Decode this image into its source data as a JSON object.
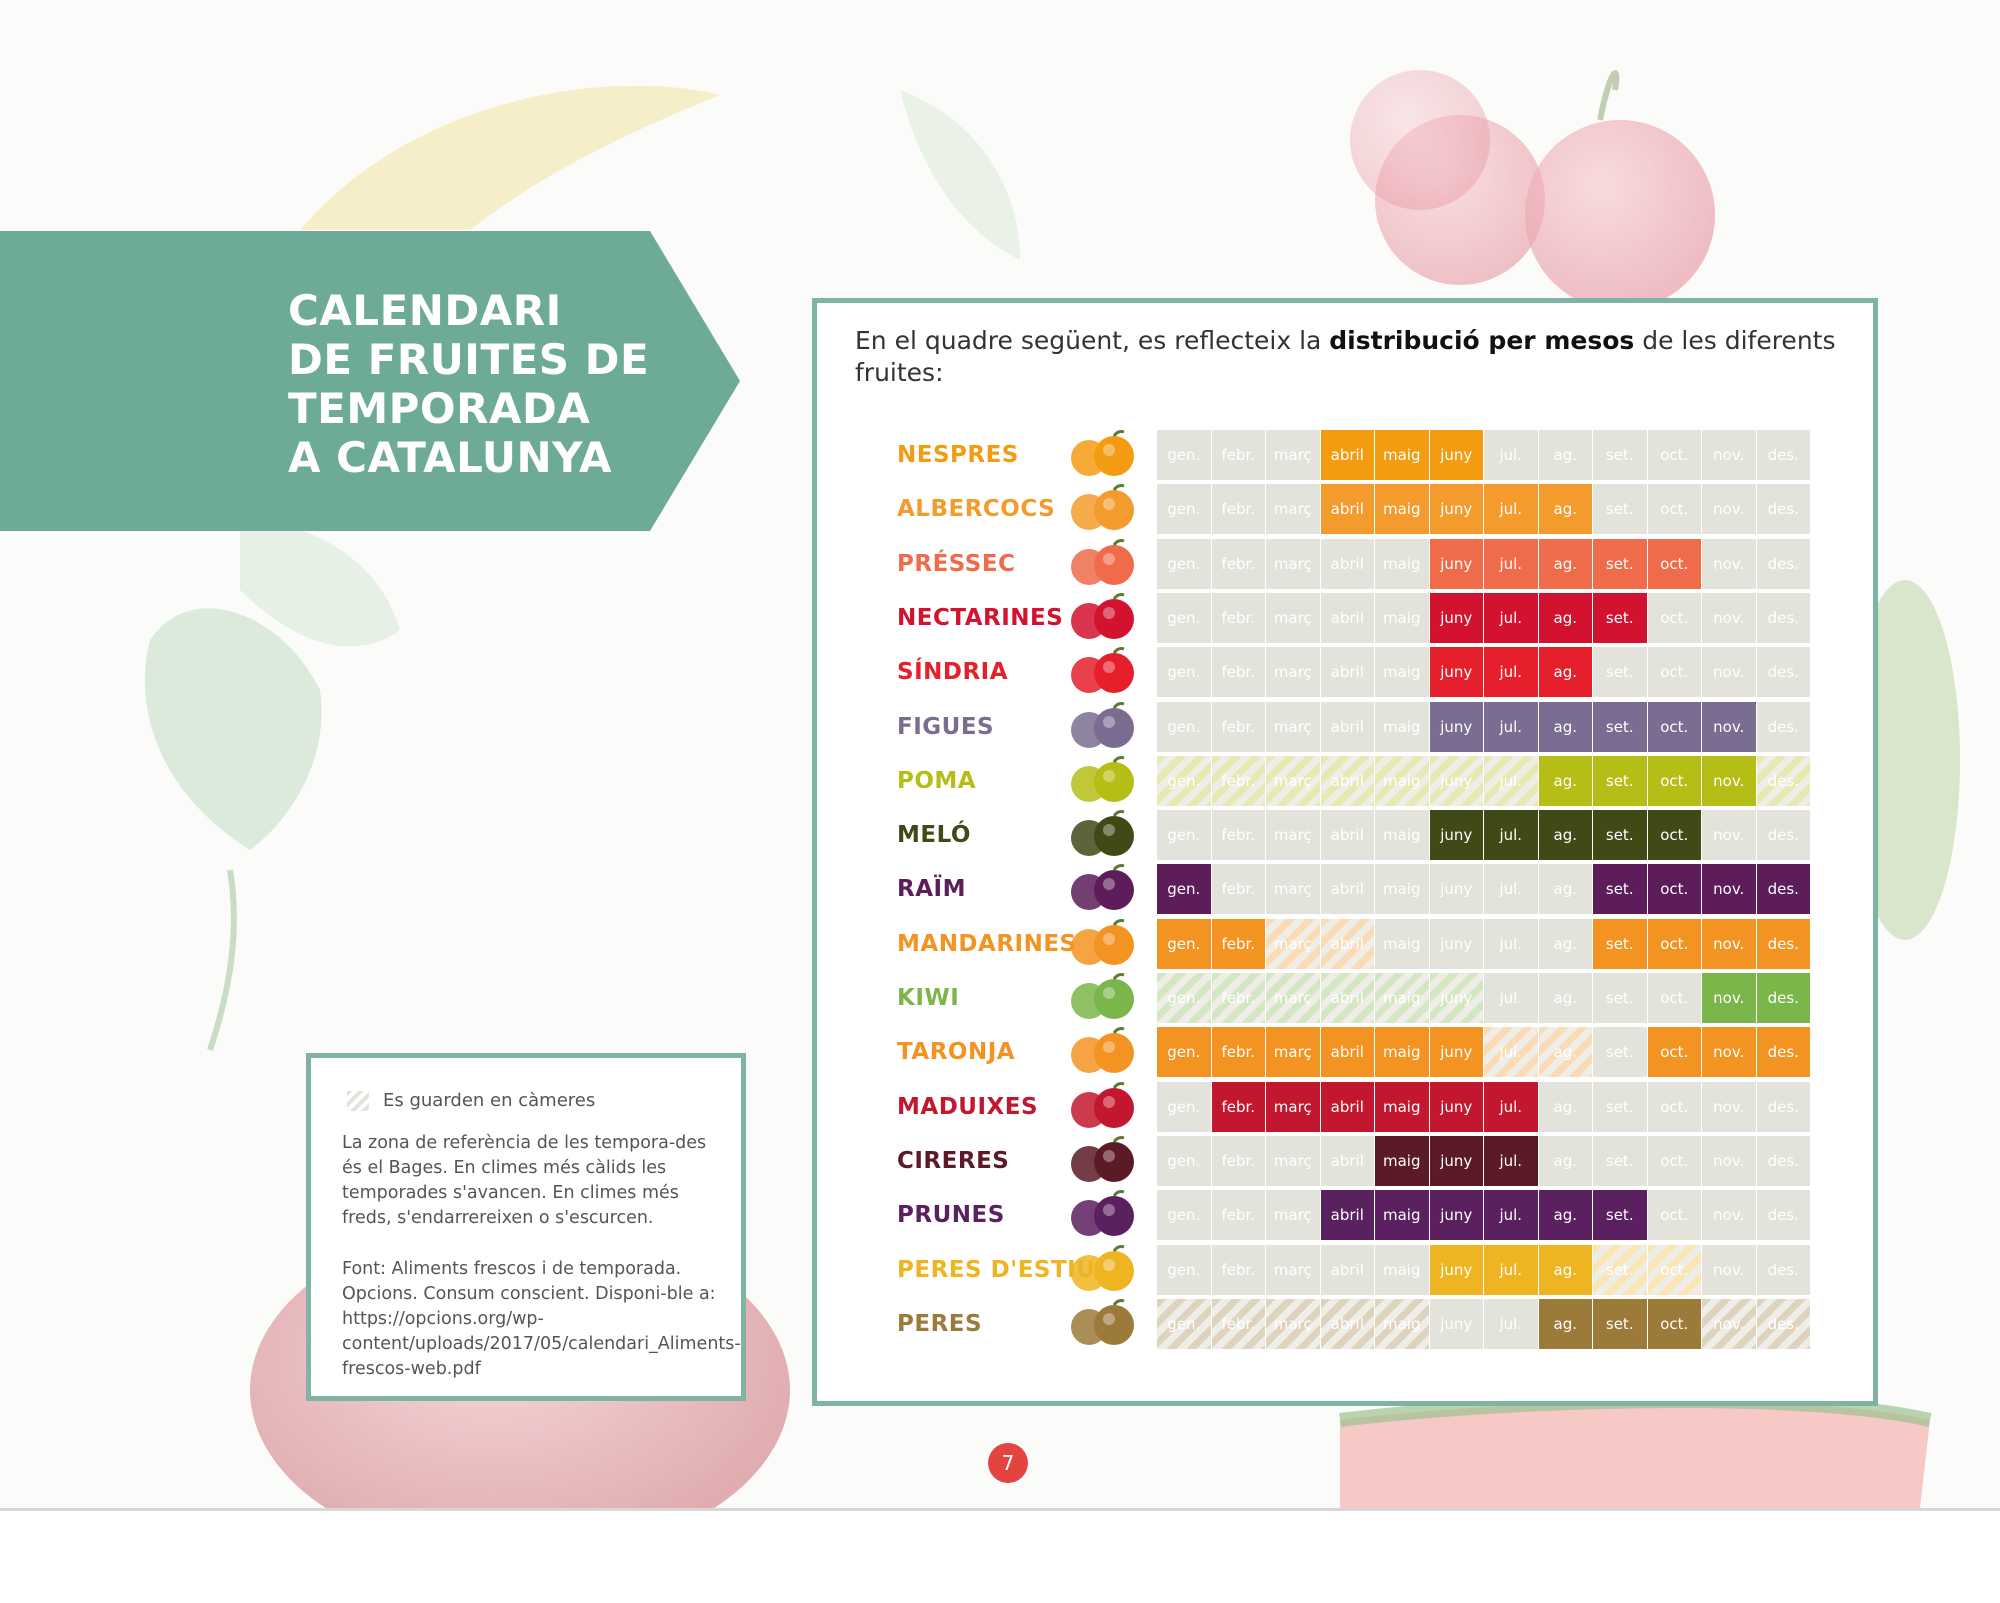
{
  "banner": {
    "title": "CALENDARI\nDE FRUITES DE\nTEMPORADA\nA CATALUNYA"
  },
  "intro": {
    "before": "En el quadre següent, es reflecteix la ",
    "bold": "distribució per mesos",
    "after": " de les diferents fruites:"
  },
  "notes": {
    "legend": "Es guarden en càmeres",
    "paragraph1": "La zona de referència de les tempora-des és el Bages. En climes més càlids les temporades s'avancen. En climes més freds, s'endarrereixen o s'escurcen.",
    "paragraph2": "Font: Aliments frescos i de temporada. Opcions. Consum conscient. Disponi-ble a: https://opcions.org/wp-content/uploads/2017/05/calendari_Aliments-frescos-web.pdf"
  },
  "page_number": "7",
  "months": [
    "gen.",
    "febr.",
    "març",
    "abril",
    "maig",
    "juny",
    "jul.",
    "ag.",
    "set.",
    "oct.",
    "nov.",
    "des."
  ],
  "calendar": [
    {
      "name": "NESPRES",
      "color": "#f39c12",
      "icon": "loquat-icon",
      "season": [
        4,
        5,
        6
      ],
      "stored": []
    },
    {
      "name": "ALBERCOCS",
      "color": "#f39b2c",
      "icon": "apricot-icon",
      "season": [
        4,
        5,
        6,
        7,
        8
      ],
      "stored": []
    },
    {
      "name": "PRÉSSEC",
      "color": "#ef6b4a",
      "icon": "peach-icon",
      "season": [
        6,
        7,
        8,
        9,
        10
      ],
      "stored": []
    },
    {
      "name": "NECTARINES",
      "color": "#d3122f",
      "icon": "nectarine-icon",
      "season": [
        6,
        7,
        8,
        9
      ],
      "stored": []
    },
    {
      "name": "SÍNDRIA",
      "color": "#e5202c",
      "icon": "watermelon-icon",
      "season": [
        6,
        7,
        8
      ],
      "stored": []
    },
    {
      "name": "FIGUES",
      "color": "#7a6d91",
      "icon": "fig-icon",
      "season": [
        6,
        7,
        8,
        9,
        10,
        11
      ],
      "stored": []
    },
    {
      "name": "POMA",
      "color": "#b5be16",
      "icon": "apple-icon",
      "season": [
        8,
        9,
        10,
        11
      ],
      "stored": [
        1,
        2,
        3,
        4,
        5,
        6,
        7,
        12
      ]
    },
    {
      "name": "MELÓ",
      "color": "#3f4a17",
      "icon": "melon-icon",
      "season": [
        6,
        7,
        8,
        9,
        10
      ],
      "stored": []
    },
    {
      "name": "RAÏM",
      "color": "#5d1c5a",
      "icon": "grape-icon",
      "season": [
        1,
        9,
        10,
        11,
        12
      ],
      "stored": []
    },
    {
      "name": "MANDARINES",
      "color": "#f39322",
      "icon": "mandarin-icon",
      "season": [
        1,
        2,
        9,
        10,
        11,
        12
      ],
      "stored": [
        3,
        4
      ]
    },
    {
      "name": "KIWI",
      "color": "#7bb64a",
      "icon": "kiwi-icon",
      "season": [
        11,
        12
      ],
      "stored": [
        1,
        2,
        3,
        4,
        5,
        6
      ]
    },
    {
      "name": "TARONJA",
      "color": "#f39322",
      "icon": "orange-icon",
      "season": [
        1,
        2,
        3,
        4,
        5,
        6,
        10,
        11,
        12
      ],
      "stored": [
        7,
        8
      ]
    },
    {
      "name": "MADUIXES",
      "color": "#c3172f",
      "icon": "strawberry-icon",
      "season": [
        2,
        3,
        4,
        5,
        6,
        7
      ],
      "stored": []
    },
    {
      "name": "CIRERES",
      "color": "#5c1a26",
      "icon": "cherry-icon",
      "season": [
        5,
        6,
        7
      ],
      "stored": []
    },
    {
      "name": "PRUNES",
      "color": "#5b2060",
      "icon": "plum-icon",
      "season": [
        4,
        5,
        6,
        7,
        8,
        9
      ],
      "stored": []
    },
    {
      "name": "PERES D'ESTIU",
      "color": "#efb421",
      "icon": "summer-pear-icon",
      "season": [
        6,
        7,
        8
      ],
      "stored": [
        9,
        10
      ]
    },
    {
      "name": "PERES",
      "color": "#9c7a3a",
      "icon": "pear-icon",
      "season": [
        8,
        9,
        10
      ],
      "stored": [
        1,
        2,
        3,
        4,
        5,
        11,
        12
      ]
    }
  ]
}
